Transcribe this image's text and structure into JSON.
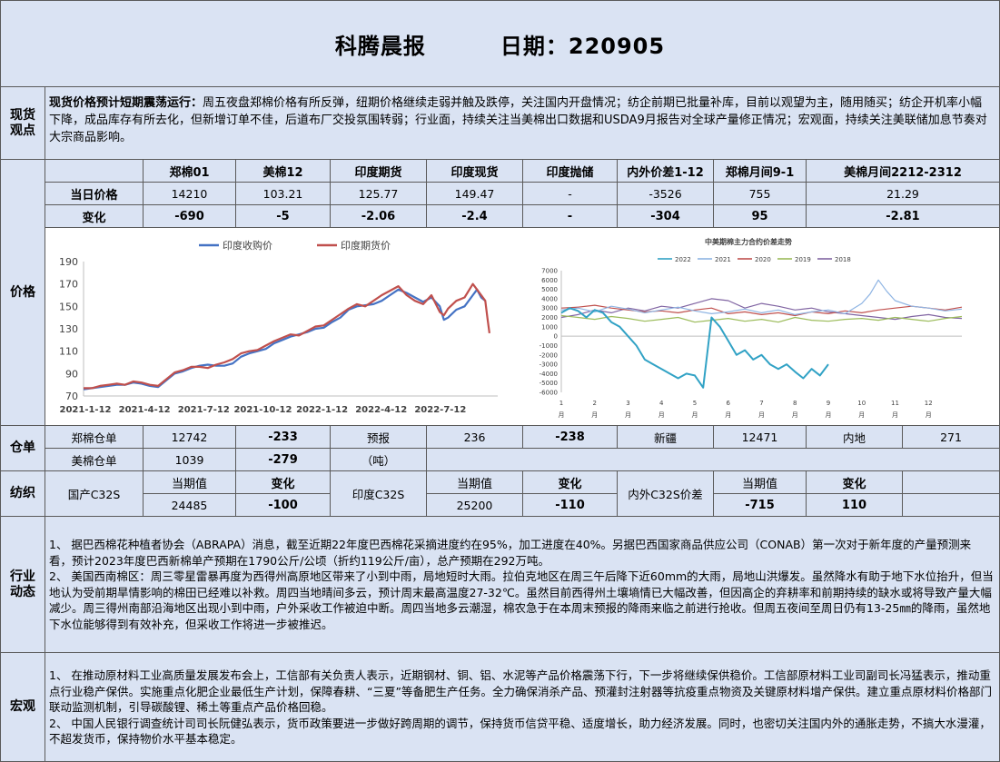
{
  "header": {
    "title": "科腾晨报",
    "date_label": "日期：220905"
  },
  "spot": {
    "label": "现货观点",
    "bold": "现货价格预计短期震荡运行：",
    "text": "周五夜盘郑棉价格有所反弹，纽期价格继续走弱并触及跌停，关注国内开盘情况；纺企前期已批量补库，目前以观望为主，随用随买；纺企开机率小幅下降，成品库存有所去化，但新增订单不佳，后道布厂交投氛围转弱；行业面，持续关注当美棉出口数据和USDA9月报告对全球产量修正情况；宏观面，持续关注美联储加息节奏对大宗商品影响。"
  },
  "price_table": {
    "headers": [
      "郑棉01",
      "美棉12",
      "印度期货",
      "印度现货",
      "印度抛储",
      "内外价差1-12",
      "郑棉月间9-1",
      "美棉月间2212-2312"
    ],
    "row1_label": "当日价格",
    "row1": [
      "14210",
      "103.21",
      "125.77",
      "149.47",
      "-",
      "-3526",
      "755",
      "21.29"
    ],
    "row2_label": "变化",
    "row2": [
      "-690",
      "-5",
      "-2.06",
      "-2.4",
      "-",
      "-304",
      "95",
      "-2.81"
    ]
  },
  "price_section": {
    "label": "价格"
  },
  "warehouse": {
    "label": "仓单",
    "row1": [
      "郑棉仓单",
      "12742",
      "-233",
      "预报",
      "236",
      "-238",
      "新疆",
      "12471",
      "内地",
      "271"
    ],
    "row2": [
      "美棉仓单",
      "1039",
      "-279",
      "（吨）"
    ]
  },
  "yarn": {
    "label": "纺织",
    "cur_label": "当期值",
    "chg_label": "变化",
    "domestic_name": "国产C32S",
    "domestic_value": "24485",
    "domestic_change": "-100",
    "india_name": "印度C32S",
    "india_value": "25200",
    "india_change": "-110",
    "spread_name": "内外C32S价差",
    "spread_value": "-715",
    "spread_change": "110"
  },
  "industry": {
    "label": "行业动态",
    "paras": [
      "1、 据巴西棉花种植者协会（ABRAPA）消息，截至近期22年度巴西棉花采摘进度约在95%，加工进度在40%。另据巴西国家商品供应公司（CONAB）第一次对于新年度的产量预测来看，预计2023年度巴西新棉单产预期在1790公斤/公顷（折约119公斤/亩），总产预期在292万吨。",
      "2、 美国西南棉区：周三零星雷暴再度为西得州高原地区带来了小到中雨，局地短时大雨。拉伯克地区在周三午后降下近60mm的大雨，局地山洪爆发。虽然降水有助于地下水位抬升，但当地认为受前期旱情影响的棉田已经难以补救。周四当地晴间多云，预计周末最高温度27-32℃。虽然目前西得州土壤墒情已大幅改善，但因高企的弃耕率和前期持续的缺水或将导致产量大幅减少。周三得州南部沿海地区出现小到中雨，户外采收工作被迫中断。周四当地多云潮湿，棉农急于在本周末预报的降雨来临之前进行抢收。但周五夜间至周日仍有13-25㎜的降雨，虽然地下水位能够得到有效补充，但采收工作将进一步被推迟。"
    ]
  },
  "macro": {
    "label": "宏观",
    "paras": [
      "1、 在推动原材料工业高质量发展发布会上，工信部有关负责人表示，近期钢材、铜、铝、水泥等产品价格震荡下行，下一步将继续保供稳价。工信部原材料工业司副司长冯猛表示，推动重点行业稳产保供。实施重点化肥企业最低生产计划，保障春耕、“三夏”等备肥生产任务。全力确保消杀产品、预灌封注射器等抗疫重点物资及关键原材料增产保供。建立重点原材料价格部门联动监测机制，引导碳酸锂、稀土等重点产品价格回稳。",
      "2、 中国人民银行调查统计司司长阮健弘表示，货币政策要进一步做好跨周期的调节，保持货币信贷平稳、适度增长，助力经济发展。同时，也密切关注国内外的通胀走势，不搞大水漫灌，不超发货币，保持物价水平基本稳定。"
    ]
  },
  "chart_data": [
    {
      "type": "line",
      "title": "",
      "xlabel": "",
      "ylabel": "",
      "ylim": [
        70,
        190
      ],
      "yticks": [
        70,
        90,
        110,
        130,
        150,
        170,
        190
      ],
      "x_ticks": [
        "2021-1-12",
        "2021-4-12",
        "2021-7-12",
        "2021-10-12",
        "2022-1-12",
        "2022-4-12",
        "2022-7-12"
      ],
      "legend_position": "top",
      "grid": false,
      "series": [
        {
          "name": "印度收购价",
          "color": "#4472c4",
          "x": [
            0,
            0.02,
            0.04,
            0.06,
            0.08,
            0.1,
            0.12,
            0.14,
            0.16,
            0.18,
            0.2,
            0.22,
            0.24,
            0.26,
            0.28,
            0.3,
            0.32,
            0.34,
            0.36,
            0.38,
            0.4,
            0.42,
            0.44,
            0.46,
            0.48,
            0.5,
            0.52,
            0.54,
            0.56,
            0.58,
            0.6,
            0.62,
            0.64,
            0.66,
            0.68,
            0.7,
            0.72,
            0.74,
            0.76,
            0.78,
            0.8,
            0.82,
            0.84,
            0.86,
            0.87,
            0.88,
            0.9,
            0.92,
            0.94,
            0.95,
            0.96,
            0.97
          ],
          "values": [
            76,
            77,
            78,
            79,
            80,
            80,
            82,
            81,
            79,
            78,
            84,
            90,
            92,
            95,
            97,
            98,
            97,
            97,
            99,
            105,
            108,
            110,
            112,
            117,
            120,
            123,
            125,
            127,
            130,
            131,
            136,
            140,
            147,
            150,
            151,
            152,
            155,
            160,
            165,
            162,
            158,
            154,
            158,
            150,
            138,
            140,
            147,
            150,
            160,
            165,
            158,
            155
          ]
        },
        {
          "name": "印度期货价",
          "color": "#c0504d",
          "x": [
            0,
            0.02,
            0.04,
            0.06,
            0.08,
            0.1,
            0.12,
            0.14,
            0.16,
            0.18,
            0.2,
            0.22,
            0.24,
            0.26,
            0.28,
            0.3,
            0.32,
            0.34,
            0.36,
            0.38,
            0.4,
            0.42,
            0.44,
            0.46,
            0.48,
            0.5,
            0.52,
            0.54,
            0.56,
            0.58,
            0.6,
            0.62,
            0.64,
            0.66,
            0.68,
            0.7,
            0.72,
            0.74,
            0.76,
            0.78,
            0.8,
            0.82,
            0.84,
            0.86,
            0.87,
            0.88,
            0.9,
            0.92,
            0.94,
            0.95,
            0.96,
            0.97,
            0.975,
            0.98
          ],
          "values": [
            77,
            77,
            79,
            80,
            81,
            80,
            83,
            82,
            80,
            79,
            85,
            91,
            93,
            96,
            96,
            95,
            98,
            100,
            103,
            108,
            110,
            111,
            115,
            119,
            122,
            125,
            124,
            128,
            132,
            133,
            138,
            143,
            148,
            152,
            150,
            155,
            160,
            164,
            168,
            160,
            155,
            152,
            160,
            145,
            142,
            148,
            155,
            158,
            170,
            165,
            160,
            155,
            140,
            126
          ]
        }
      ]
    },
    {
      "type": "line",
      "title": "中美期棉主力合约价差走势",
      "xlabel": "",
      "ylabel": "",
      "ylim": [
        -6000,
        7000
      ],
      "yticks": [
        -6000,
        -5000,
        -4000,
        -3000,
        -2000,
        -1000,
        0,
        1000,
        2000,
        3000,
        4000,
        5000,
        6000,
        7000
      ],
      "x_ticks": [
        "1月",
        "2月",
        "3月",
        "4月",
        "5月",
        "6月",
        "7月",
        "8月",
        "9月",
        "10月",
        "11月",
        "12月"
      ],
      "legend_position": "top",
      "grid": false,
      "series": [
        {
          "name": "2022",
          "color": "#31a2c5",
          "x": [
            0,
            0.25,
            0.5,
            0.75,
            1,
            1.25,
            1.5,
            1.75,
            2,
            2.25,
            2.5,
            2.75,
            3,
            3.25,
            3.5,
            3.75,
            4,
            4.25,
            4.5,
            4.75,
            5,
            5.25,
            5.5,
            5.75,
            6,
            6.25,
            6.5,
            6.75,
            7,
            7.25,
            7.5,
            7.75,
            8
          ],
          "values": [
            2500,
            3000,
            2700,
            2000,
            2800,
            2500,
            1500,
            1000,
            0,
            -1000,
            -2500,
            -3000,
            -3500,
            -4000,
            -4500,
            -4000,
            -4200,
            -5500,
            2000,
            1000,
            -500,
            -2000,
            -1500,
            -2500,
            -2000,
            -3000,
            -3500,
            -3000,
            -3800,
            -4500,
            -3500,
            -4200,
            -3000
          ]
        },
        {
          "name": "2021",
          "color": "#8eb4e3",
          "x": [
            0,
            0.5,
            1,
            1.5,
            2,
            2.5,
            3,
            3.5,
            4,
            4.5,
            5,
            5.5,
            6,
            6.5,
            7,
            7.5,
            8,
            8.5,
            9,
            9.25,
            9.5,
            9.75,
            10,
            10.5,
            11,
            11.5,
            12
          ],
          "values": [
            2800,
            3000,
            2600,
            3200,
            2900,
            2500,
            2800,
            3100,
            2700,
            2400,
            2600,
            2900,
            2500,
            2800,
            2300,
            2600,
            2800,
            2400,
            3500,
            4500,
            6000,
            4800,
            3800,
            3200,
            3000,
            2700,
            2900
          ]
        },
        {
          "name": "2020",
          "color": "#c0504d",
          "x": [
            0,
            0.5,
            1,
            1.5,
            2,
            2.5,
            3,
            3.5,
            4,
            4.5,
            5,
            5.5,
            6,
            6.5,
            7,
            7.5,
            8,
            8.5,
            9,
            9.5,
            10,
            10.5,
            11,
            11.5,
            12
          ],
          "values": [
            3000,
            3100,
            3300,
            3000,
            2800,
            2600,
            2700,
            2500,
            2800,
            3000,
            2400,
            2600,
            2300,
            2500,
            2200,
            2600,
            2400,
            2700,
            2500,
            2800,
            3000,
            3200,
            3000,
            2800,
            3100
          ]
        },
        {
          "name": "2019",
          "color": "#9bbb59",
          "x": [
            0,
            0.5,
            1,
            1.5,
            2,
            2.5,
            3,
            3.5,
            4,
            4.5,
            5,
            5.5,
            6,
            6.5,
            7,
            7.5,
            8,
            8.5,
            9,
            9.5,
            10,
            10.5,
            11,
            11.5,
            12
          ],
          "values": [
            2200,
            2000,
            1800,
            2100,
            1900,
            1600,
            1800,
            2000,
            1500,
            1700,
            1900,
            1600,
            1800,
            1500,
            2000,
            1700,
            1600,
            1800,
            1900,
            1700,
            2000,
            1800,
            1600,
            1900,
            2100
          ]
        },
        {
          "name": "2018",
          "color": "#8064a2",
          "x": [
            0,
            0.5,
            1,
            1.5,
            2,
            2.5,
            3,
            3.5,
            4,
            4.5,
            5,
            5.5,
            6,
            6.5,
            7,
            7.5,
            8,
            8.5,
            9,
            9.5,
            10,
            10.5,
            11,
            11.5,
            12
          ],
          "values": [
            2000,
            2300,
            2800,
            2500,
            3000,
            2700,
            3200,
            3000,
            3500,
            4000,
            3800,
            3000,
            3500,
            3200,
            2800,
            3000,
            2600,
            2400,
            2200,
            2000,
            1800,
            2100,
            2300,
            2000,
            1900
          ]
        }
      ]
    }
  ]
}
